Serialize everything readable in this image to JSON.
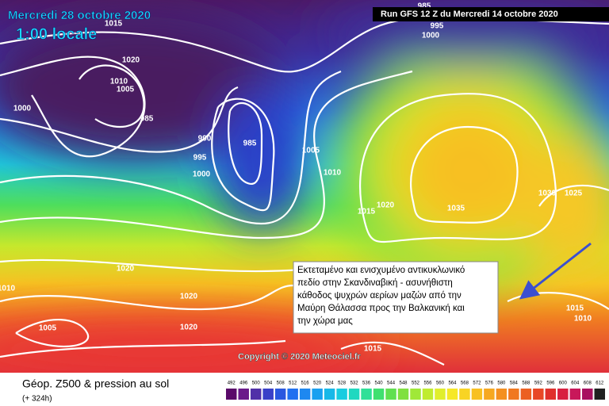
{
  "header": {
    "date": "Mercredi 28 octobre 2020",
    "time": "1:00 locale",
    "run": "Run GFS 12 Z du Mercredi 14 octobre 2020"
  },
  "isobar_labels": [
    "1015",
    "985",
    "995",
    "1000",
    "1020",
    "1010",
    "1005",
    "1000",
    "985",
    "990",
    "985",
    "995",
    "1000",
    "1005",
    "1010",
    "1015",
    "1020",
    "1035",
    "1030",
    "1025",
    "1020",
    "1010",
    "1020",
    "1005",
    "1020",
    "1015",
    "1015",
    "1010"
  ],
  "annotation": {
    "lines": [
      "Εκτεταμένο και ενισχυμένο αντικυκλωνικό",
      "πεδίο στην Σκανδιναβική - ασυνήθιστη",
      "κάθοδος ψυχρών αερίων μαζών από την",
      "Μαύρη Θάλασσα προς την Βαλκανική και",
      "την χώρα μας"
    ]
  },
  "copyright": "Copyright © 2020 Meteociel.fr",
  "footer": {
    "title": "Géop. Z500 & pression au sol",
    "lead_time": "(+ 324h)"
  },
  "legend": {
    "scale": [
      492,
      496,
      500,
      504,
      508,
      512,
      516,
      520,
      524,
      528,
      532,
      536,
      540,
      544,
      548,
      552,
      556,
      560,
      564,
      568,
      572,
      576,
      580,
      584,
      588,
      592,
      596,
      600,
      604,
      608,
      612
    ]
  }
}
